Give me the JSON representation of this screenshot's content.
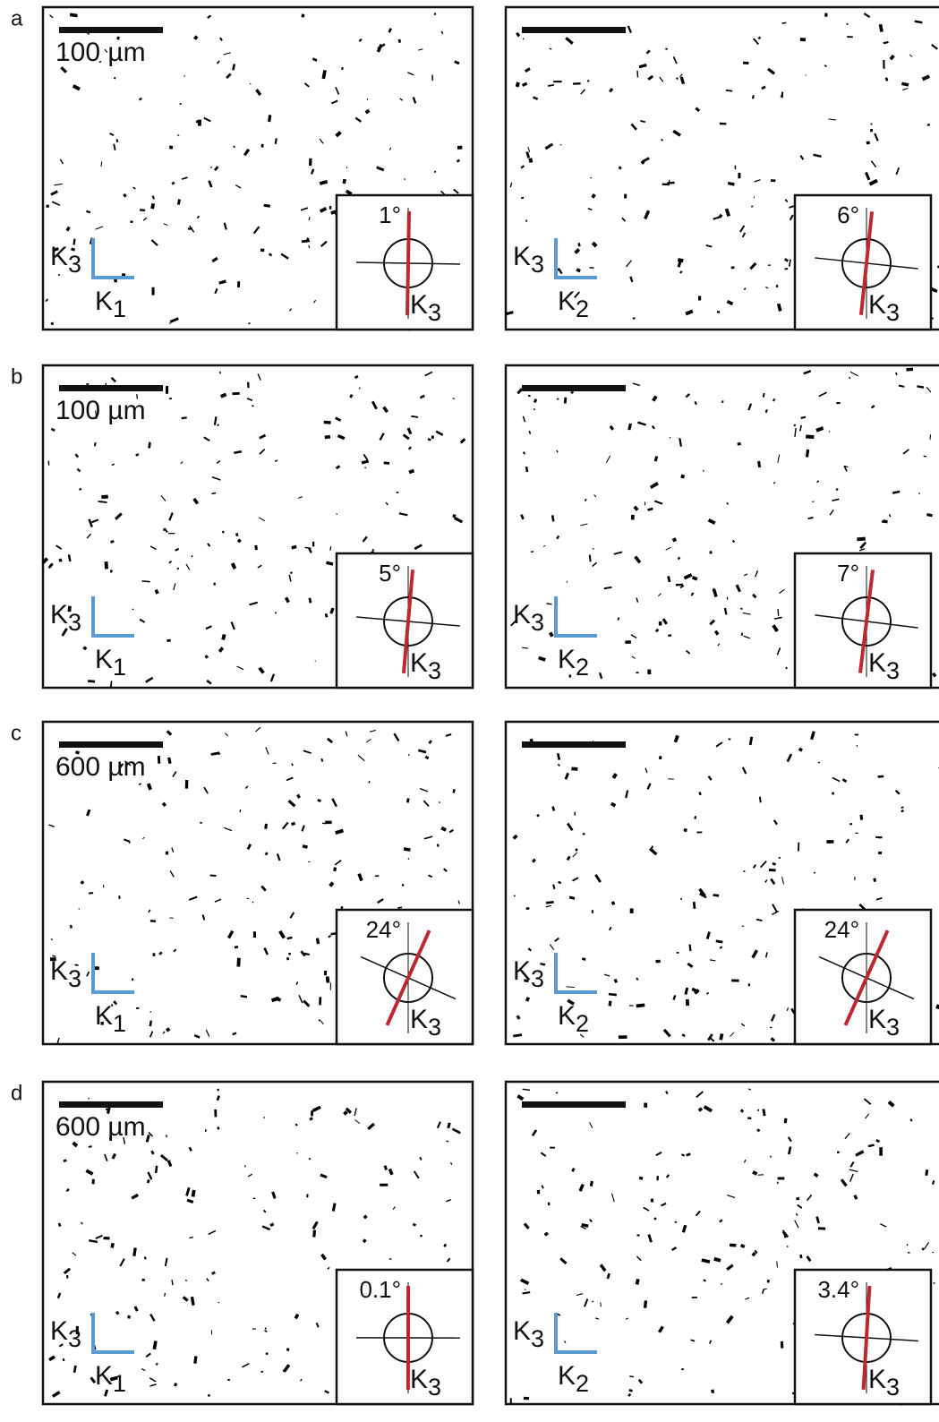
{
  "rows": [
    {
      "label": "a",
      "panels": [
        {
          "scale_label": "100 µm",
          "vertical_axis": {
            "letter": "K",
            "index": "3"
          },
          "horizontal_axis": {
            "letter": "K",
            "index": "1"
          },
          "angle": {
            "value": 1,
            "label": "1°"
          },
          "inset_axis": {
            "letter": "K",
            "index": "3"
          }
        },
        {
          "vertical_axis": {
            "letter": "K",
            "index": "3"
          },
          "horizontal_axis": {
            "letter": "K",
            "index": "2"
          },
          "angle": {
            "value": 6,
            "label": "6°"
          },
          "inset_axis": {
            "letter": "K",
            "index": "3"
          }
        }
      ]
    },
    {
      "label": "b",
      "panels": [
        {
          "scale_label": "100 µm",
          "vertical_axis": {
            "letter": "K",
            "index": "3"
          },
          "horizontal_axis": {
            "letter": "K",
            "index": "1"
          },
          "angle": {
            "value": 5,
            "label": "5°"
          },
          "inset_axis": {
            "letter": "K",
            "index": "3"
          }
        },
        {
          "vertical_axis": {
            "letter": "K",
            "index": "3"
          },
          "horizontal_axis": {
            "letter": "K",
            "index": "2"
          },
          "angle": {
            "value": 7,
            "label": "7°"
          },
          "inset_axis": {
            "letter": "K",
            "index": "3"
          }
        }
      ]
    },
    {
      "label": "c",
      "panels": [
        {
          "scale_label": "600 µm",
          "vertical_axis": {
            "letter": "K",
            "index": "3"
          },
          "horizontal_axis": {
            "letter": "K",
            "index": "1"
          },
          "angle": {
            "value": 24,
            "label": "24°"
          },
          "inset_axis": {
            "letter": "K",
            "index": "3"
          }
        },
        {
          "vertical_axis": {
            "letter": "K",
            "index": "3"
          },
          "horizontal_axis": {
            "letter": "K",
            "index": "2"
          },
          "angle": {
            "value": 24,
            "label": "24°"
          },
          "inset_axis": {
            "letter": "K",
            "index": "3"
          }
        }
      ]
    },
    {
      "label": "d",
      "panels": [
        {
          "scale_label": "600 µm",
          "vertical_axis": {
            "letter": "K",
            "index": "3"
          },
          "horizontal_axis": {
            "letter": "K",
            "index": "1"
          },
          "angle": {
            "value": 0.1,
            "label": "0.1°"
          },
          "inset_axis": {
            "letter": "K",
            "index": "3"
          }
        },
        {
          "vertical_axis": {
            "letter": "K",
            "index": "3"
          },
          "horizontal_axis": {
            "letter": "K",
            "index": "2"
          },
          "angle": {
            "value": 3.4,
            "label": "3.4°"
          },
          "inset_axis": {
            "letter": "K",
            "index": "3"
          }
        }
      ]
    }
  ]
}
